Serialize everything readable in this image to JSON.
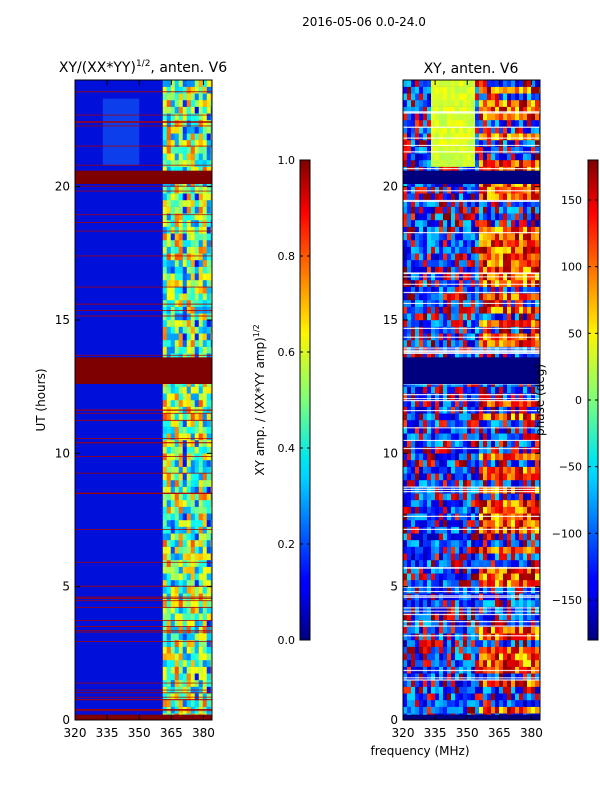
{
  "figure": {
    "suptitle": "2016-05-06 0.0-24.0",
    "shared_xlabel": "frequency (MHz)"
  },
  "chart_data": [
    {
      "type": "heatmap",
      "title": "XY/(XX*YY)^1/2, anten. V6",
      "title_base": "XY/(XX*YY)",
      "title_sup": "1/2",
      "title_tail": ", anten. V6",
      "xlabel": "frequency (MHz)",
      "ylabel": "UT (hours)",
      "xlim": [
        320,
        384
      ],
      "ylim": [
        0,
        24
      ],
      "xticks": [
        320,
        335,
        350,
        365,
        380
      ],
      "yticks": [
        0,
        5,
        10,
        15,
        20
      ],
      "colorbar": {
        "label": "XY amp. / (XX*YY amp)^1/2",
        "label_base": "XY amp. / (XX*YY amp)",
        "label_sup": "1/2",
        "min": 0.0,
        "max": 1.0,
        "ticks": [
          0.0,
          0.2,
          0.4,
          0.6,
          0.8,
          1.0
        ],
        "ticklabels": [
          "0.0",
          "0.2",
          "0.4",
          "0.6",
          "0.8",
          "1.0"
        ],
        "colormap": "jet"
      },
      "flagged_bands_hours": [
        [
          0,
          0.2
        ],
        [
          12.6,
          13.6
        ],
        [
          20.1,
          20.6
        ]
      ],
      "active_band_mhz": [
        361,
        383
      ]
    },
    {
      "type": "heatmap",
      "title": "XY, anten. V6",
      "xlabel": "frequency (MHz)",
      "ylabel": "",
      "xlim": [
        320,
        384
      ],
      "ylim": [
        0,
        24
      ],
      "xticks": [
        320,
        335,
        350,
        365,
        380
      ],
      "yticks": [
        0,
        5,
        10,
        15,
        20
      ],
      "colorbar": {
        "label": "phase (deg)",
        "min": -180,
        "max": 180,
        "ticks": [
          -150,
          -100,
          -50,
          0,
          50,
          100,
          150
        ],
        "ticklabels": [
          "−150",
          "−100",
          "−50",
          "0",
          "50",
          "100",
          "150"
        ],
        "colormap": "jet"
      },
      "flagged_bands_hours": [
        [
          0,
          0.2
        ],
        [
          12.6,
          13.6
        ],
        [
          20.1,
          20.6
        ]
      ]
    }
  ]
}
